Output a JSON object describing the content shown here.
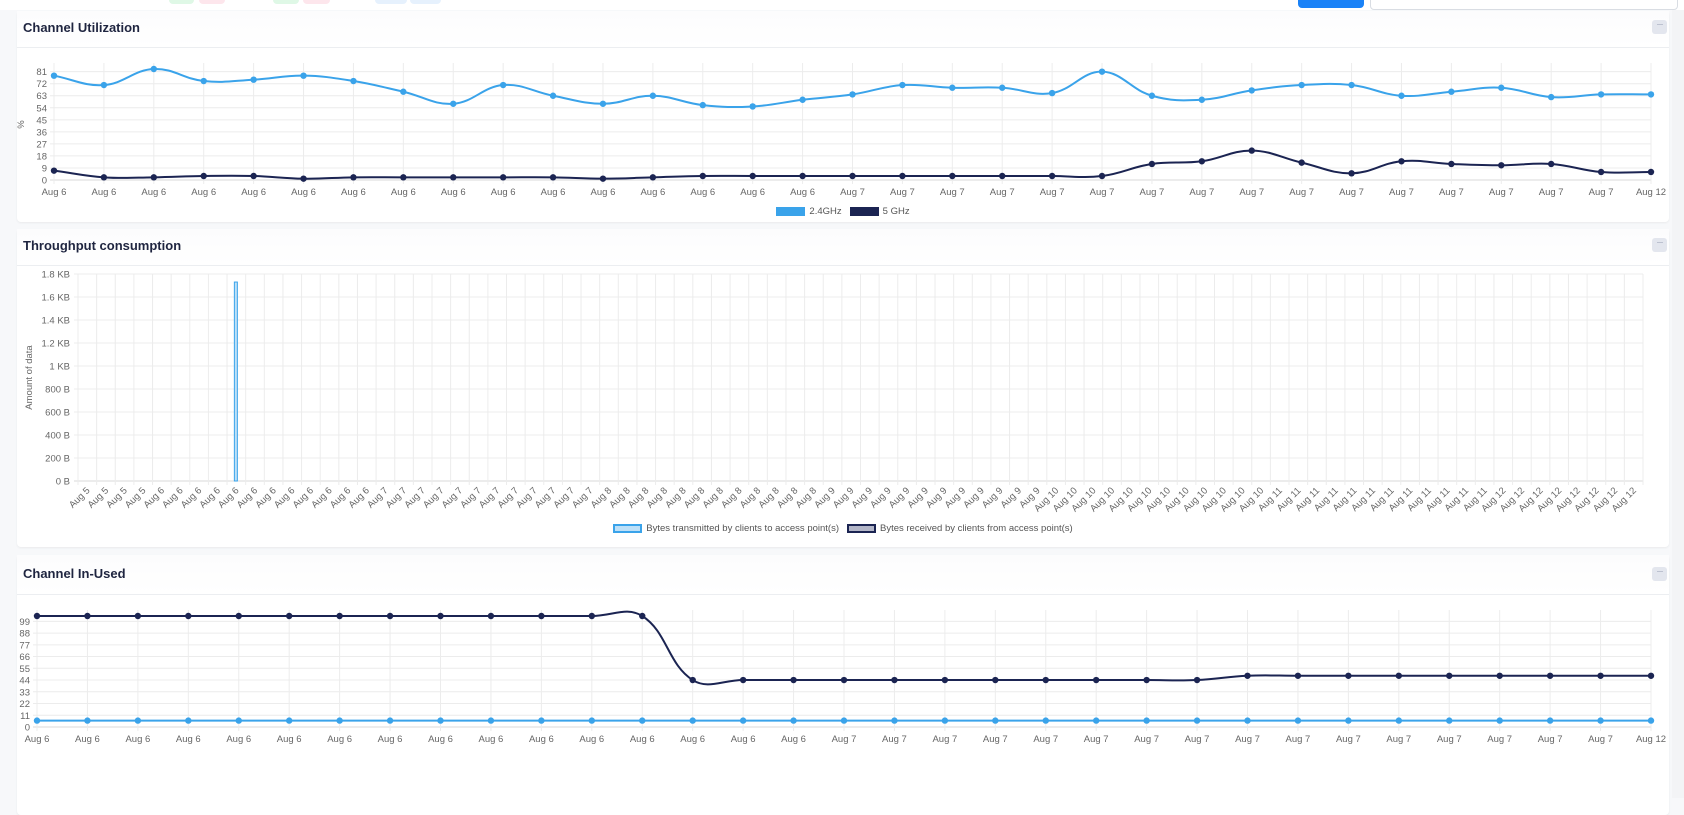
{
  "colors": {
    "series_light": "#3aa3ea",
    "series_dark": "#1b2452",
    "primary_button": "#1a82f7"
  },
  "cards": [
    {
      "title": "Channel Utilization",
      "more_icon": "ellipsis-icon",
      "more_label": "···",
      "legend": [
        {
          "label": "2.4GHz",
          "color": "#3aa3ea"
        },
        {
          "label": "5 GHz",
          "color": "#1b2452"
        }
      ]
    },
    {
      "title": "Throughput consumption",
      "more_icon": "ellipsis-icon",
      "more_label": "···",
      "legend": [
        {
          "label": "Bytes transmitted by clients to access point(s)",
          "color": "#bde0f8",
          "border": "#3aa3ea"
        },
        {
          "label": "Bytes received by clients from access point(s)",
          "color": "#b3b6c8",
          "border": "#1b2452"
        }
      ]
    },
    {
      "title": "Channel In-Used",
      "more_icon": "ellipsis-icon",
      "more_label": "···"
    }
  ],
  "chart_data": [
    {
      "type": "line",
      "title": "Channel Utilization",
      "ylabel": "%",
      "ylim": [
        0,
        83
      ],
      "yticks": [
        0,
        9,
        18,
        27,
        36,
        45,
        54,
        63,
        72,
        81
      ],
      "grid": true,
      "legend_placement": "bottom",
      "categories": [
        "Aug 6",
        "Aug 6",
        "Aug 6",
        "Aug 6",
        "Aug 6",
        "Aug 6",
        "Aug 6",
        "Aug 6",
        "Aug 6",
        "Aug 6",
        "Aug 6",
        "Aug 6",
        "Aug 6",
        "Aug 6",
        "Aug 6",
        "Aug 6",
        "Aug 7",
        "Aug 7",
        "Aug 7",
        "Aug 7",
        "Aug 7",
        "Aug 7",
        "Aug 7",
        "Aug 7",
        "Aug 7",
        "Aug 7",
        "Aug 7",
        "Aug 7",
        "Aug 7",
        "Aug 7",
        "Aug 7",
        "Aug 7",
        "Aug 12"
      ],
      "series": [
        {
          "name": "2.4GHz",
          "color": "#3aa3ea",
          "values": [
            78,
            71,
            83,
            74,
            75,
            78,
            74,
            66,
            57,
            71,
            63,
            57,
            63,
            56,
            55,
            60,
            64,
            71,
            69,
            69,
            65,
            81,
            63,
            60,
            67,
            71,
            71,
            63,
            66,
            69,
            62,
            64,
            64
          ]
        },
        {
          "name": "5 GHz",
          "color": "#1b2452",
          "values": [
            7,
            2,
            2,
            3,
            3,
            1,
            2,
            2,
            2,
            2,
            2,
            1,
            2,
            3,
            3,
            3,
            3,
            3,
            3,
            3,
            3,
            3,
            12,
            14,
            22,
            13,
            5,
            14,
            12,
            11,
            12,
            6,
            6
          ]
        }
      ]
    },
    {
      "type": "bar",
      "title": "Throughput consumption",
      "ylabel": "Amount of data",
      "ylim": [
        0,
        1800
      ],
      "yunit": "B",
      "yticks": [
        {
          "value": 0,
          "label": "0 B"
        },
        {
          "value": 200,
          "label": "200 B"
        },
        {
          "value": 400,
          "label": "400 B"
        },
        {
          "value": 600,
          "label": "600 B"
        },
        {
          "value": 800,
          "label": "800 B"
        },
        {
          "value": 1000,
          "label": "1 KB"
        },
        {
          "value": 1200,
          "label": "1.2 KB"
        },
        {
          "value": 1400,
          "label": "1.4 KB"
        },
        {
          "value": 1600,
          "label": "1.6 KB"
        },
        {
          "value": 1800,
          "label": "1.8 KB"
        }
      ],
      "grid": true,
      "legend_placement": "bottom",
      "categories": [
        "Aug 5",
        "Aug 5",
        "Aug 5",
        "Aug 5",
        "Aug 6",
        "Aug 6",
        "Aug 6",
        "Aug 6",
        "Aug 6",
        "Aug 6",
        "Aug 6",
        "Aug 6",
        "Aug 6",
        "Aug 6",
        "Aug 6",
        "Aug 6",
        "Aug 7",
        "Aug 7",
        "Aug 7",
        "Aug 7",
        "Aug 7",
        "Aug 7",
        "Aug 7",
        "Aug 7",
        "Aug 7",
        "Aug 7",
        "Aug 7",
        "Aug 7",
        "Aug 8",
        "Aug 8",
        "Aug 8",
        "Aug 8",
        "Aug 8",
        "Aug 8",
        "Aug 8",
        "Aug 8",
        "Aug 8",
        "Aug 8",
        "Aug 8",
        "Aug 8",
        "Aug 9",
        "Aug 9",
        "Aug 9",
        "Aug 9",
        "Aug 9",
        "Aug 9",
        "Aug 9",
        "Aug 9",
        "Aug 9",
        "Aug 9",
        "Aug 9",
        "Aug 9",
        "Aug 10",
        "Aug 10",
        "Aug 10",
        "Aug 10",
        "Aug 10",
        "Aug 10",
        "Aug 10",
        "Aug 10",
        "Aug 10",
        "Aug 10",
        "Aug 10",
        "Aug 10",
        "Aug 11",
        "Aug 11",
        "Aug 11",
        "Aug 11",
        "Aug 11",
        "Aug 11",
        "Aug 11",
        "Aug 11",
        "Aug 11",
        "Aug 11",
        "Aug 11",
        "Aug 11",
        "Aug 12",
        "Aug 12",
        "Aug 12",
        "Aug 12",
        "Aug 12",
        "Aug 12",
        "Aug 12",
        "Aug 12"
      ],
      "series": [
        {
          "name": "Bytes transmitted by clients to access point(s)",
          "color": "#bde0f8",
          "border": "#3aa3ea",
          "values": [
            0,
            0,
            0,
            0,
            0,
            0,
            0,
            0,
            1730,
            0,
            0,
            0,
            0,
            0,
            0,
            0,
            0,
            0,
            0,
            0,
            0,
            0,
            0,
            0,
            0,
            0,
            0,
            0,
            0,
            0,
            0,
            0,
            0,
            0,
            0,
            0,
            0,
            0,
            0,
            0,
            0,
            0,
            0,
            0,
            0,
            0,
            0,
            0,
            0,
            0,
            0,
            0,
            0,
            0,
            0,
            0,
            0,
            0,
            0,
            0,
            0,
            0,
            0,
            0,
            0,
            0,
            0,
            0,
            0,
            0,
            0,
            0,
            0,
            0,
            0,
            0,
            0,
            0,
            0,
            0,
            0,
            0,
            0,
            0
          ]
        },
        {
          "name": "Bytes received by clients from access point(s)",
          "color": "#b3b6c8",
          "border": "#1b2452",
          "values": [
            0,
            0,
            0,
            0,
            0,
            0,
            0,
            0,
            0,
            0,
            0,
            0,
            0,
            0,
            0,
            0,
            0,
            0,
            0,
            0,
            0,
            0,
            0,
            0,
            0,
            0,
            0,
            0,
            0,
            0,
            0,
            0,
            0,
            0,
            0,
            0,
            0,
            0,
            0,
            0,
            0,
            0,
            0,
            0,
            0,
            0,
            0,
            0,
            0,
            0,
            0,
            0,
            0,
            0,
            0,
            0,
            0,
            0,
            0,
            0,
            0,
            0,
            0,
            0,
            0,
            0,
            0,
            0,
            0,
            0,
            0,
            0,
            0,
            0,
            0,
            0,
            0,
            0,
            0,
            0,
            0,
            0,
            0,
            0
          ]
        }
      ]
    },
    {
      "type": "line",
      "title": "Channel In-Used",
      "ylim": [
        0,
        104
      ],
      "yticks": [
        0,
        11,
        22,
        33,
        44,
        55,
        66,
        77,
        88,
        99
      ],
      "grid": true,
      "categories": [
        "Aug 6",
        "Aug 6",
        "Aug 6",
        "Aug 6",
        "Aug 6",
        "Aug 6",
        "Aug 6",
        "Aug 6",
        "Aug 6",
        "Aug 6",
        "Aug 6",
        "Aug 6",
        "Aug 6",
        "Aug 6",
        "Aug 6",
        "Aug 6",
        "Aug 7",
        "Aug 7",
        "Aug 7",
        "Aug 7",
        "Aug 7",
        "Aug 7",
        "Aug 7",
        "Aug 7",
        "Aug 7",
        "Aug 7",
        "Aug 7",
        "Aug 7",
        "Aug 7",
        "Aug 7",
        "Aug 7",
        "Aug 7",
        "Aug 12"
      ],
      "series": [
        {
          "color": "#1b2452",
          "values": [
            104,
            104,
            104,
            104,
            104,
            104,
            104,
            104,
            104,
            104,
            104,
            104,
            104,
            44,
            44,
            44,
            44,
            44,
            44,
            44,
            44,
            44,
            44,
            44,
            48,
            48,
            48,
            48,
            48,
            48,
            48,
            48,
            48
          ]
        },
        {
          "color": "#3aa3ea",
          "values": [
            6,
            6,
            6,
            6,
            6,
            6,
            6,
            6,
            6,
            6,
            6,
            6,
            6,
            6,
            6,
            6,
            6,
            6,
            6,
            6,
            6,
            6,
            6,
            6,
            6,
            6,
            6,
            6,
            6,
            6,
            6,
            6,
            6
          ]
        }
      ]
    }
  ]
}
